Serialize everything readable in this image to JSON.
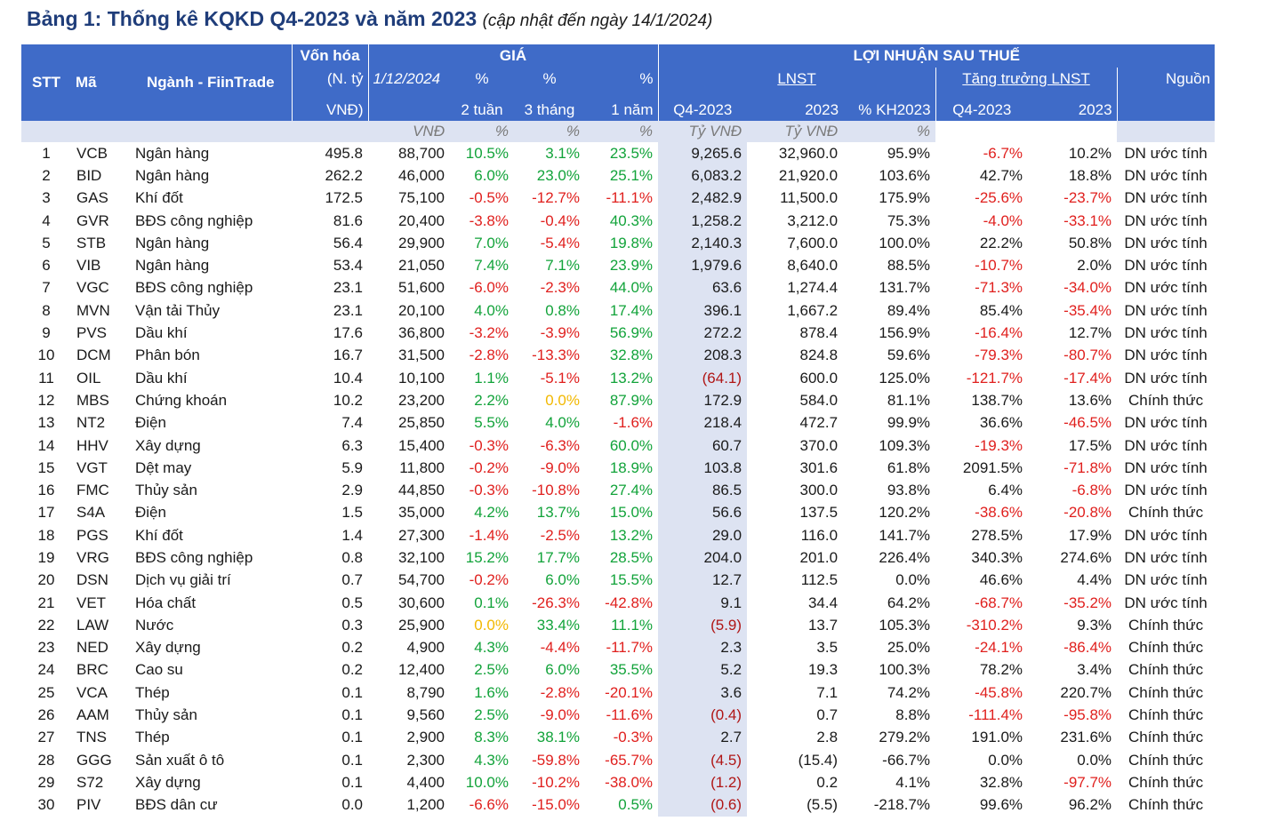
{
  "title": {
    "main": "Bảng 1: Thống kê KQKD Q4-2023 và năm 2023",
    "sub": "(cập nhật đến ngày 14/1/2024)"
  },
  "header": {
    "stt": "STT",
    "ma": "Mã",
    "nganh": "Ngành - FiinTrade",
    "von_hoa_1": "Vốn hóa",
    "von_hoa_2": "(N. tỷ",
    "von_hoa_3": "VNĐ)",
    "gia": "GIÁ",
    "gia_date": "1/12/2024",
    "pct_2tuan_a": "%",
    "pct_2tuan_b": "2 tuần",
    "pct_3thang_a": "%",
    "pct_3thang_b": "3 tháng",
    "pct_1nam_a": "%",
    "pct_1nam_b": "1 năm",
    "lnst_group": "LỢI NHUẬN SAU THUẾ",
    "lnst": "LNST",
    "q4": "Q4-2023",
    "y2023": "2023",
    "kh": "% KH2023",
    "tang_truong": "Tăng trưởng LNST",
    "tt_q4": "Q4-2023",
    "tt_2023": "2023",
    "nguon": "Nguồn"
  },
  "units": [
    "VNĐ",
    "%",
    "%",
    "%",
    "Tỷ VNĐ",
    "Tỷ VNĐ",
    "%"
  ],
  "rows": [
    [
      "1",
      "VCB",
      "Ngân hàng",
      "495.8",
      "88,700",
      "10.5%",
      "3.1%",
      "23.5%",
      "9,265.6",
      "32,960.0",
      "95.9%",
      "-6.7%",
      "10.2%",
      "DN ước tính"
    ],
    [
      "2",
      "BID",
      "Ngân hàng",
      "262.2",
      "46,000",
      "6.0%",
      "23.0%",
      "25.1%",
      "6,083.2",
      "21,920.0",
      "103.6%",
      "42.7%",
      "18.8%",
      "DN ước tính"
    ],
    [
      "3",
      "GAS",
      "Khí đốt",
      "172.5",
      "75,100",
      "-0.5%",
      "-12.7%",
      "-11.1%",
      "2,482.9",
      "11,500.0",
      "175.9%",
      "-25.6%",
      "-23.7%",
      "DN ước tính"
    ],
    [
      "4",
      "GVR",
      "BĐS công nghiệp",
      "81.6",
      "20,400",
      "-3.8%",
      "-0.4%",
      "40.3%",
      "1,258.2",
      "3,212.0",
      "75.3%",
      "-4.0%",
      "-33.1%",
      "DN ước tính"
    ],
    [
      "5",
      "STB",
      "Ngân hàng",
      "56.4",
      "29,900",
      "7.0%",
      "-5.4%",
      "19.8%",
      "2,140.3",
      "7,600.0",
      "100.0%",
      "22.2%",
      "50.8%",
      "DN ước tính"
    ],
    [
      "6",
      "VIB",
      "Ngân hàng",
      "53.4",
      "21,050",
      "7.4%",
      "7.1%",
      "23.9%",
      "1,979.6",
      "8,640.0",
      "88.5%",
      "-10.7%",
      "2.0%",
      "DN ước tính"
    ],
    [
      "7",
      "VGC",
      "BĐS công nghiệp",
      "23.1",
      "51,600",
      "-6.0%",
      "-2.3%",
      "44.0%",
      "63.6",
      "1,274.4",
      "131.7%",
      "-71.3%",
      "-34.0%",
      "DN ước tính"
    ],
    [
      "8",
      "MVN",
      "Vận tải Thủy",
      "23.1",
      "20,100",
      "4.0%",
      "0.8%",
      "17.4%",
      "396.1",
      "1,667.2",
      "89.4%",
      "85.4%",
      "-35.4%",
      "DN ước tính"
    ],
    [
      "9",
      "PVS",
      "Dầu khí",
      "17.6",
      "36,800",
      "-3.2%",
      "-3.9%",
      "56.9%",
      "272.2",
      "878.4",
      "156.9%",
      "-16.4%",
      "12.7%",
      "DN ước tính"
    ],
    [
      "10",
      "DCM",
      "Phân bón",
      "16.7",
      "31,500",
      "-2.8%",
      "-13.3%",
      "32.8%",
      "208.3",
      "824.8",
      "59.6%",
      "-79.3%",
      "-80.7%",
      "DN ước tính"
    ],
    [
      "11",
      "OIL",
      "Dầu khí",
      "10.4",
      "10,100",
      "1.1%",
      "-5.1%",
      "13.2%",
      "(64.1)",
      "600.0",
      "125.0%",
      "-121.7%",
      "-17.4%",
      "DN ước tính"
    ],
    [
      "12",
      "MBS",
      "Chứng khoán",
      "10.2",
      "23,200",
      "2.2%",
      "0.0%",
      "87.9%",
      "172.9",
      "584.0",
      "81.1%",
      "138.7%",
      "13.6%",
      "Chính thức"
    ],
    [
      "13",
      "NT2",
      "Điện",
      "7.4",
      "25,850",
      "5.5%",
      "4.0%",
      "-1.6%",
      "218.4",
      "472.7",
      "99.9%",
      "36.6%",
      "-46.5%",
      "DN ước tính"
    ],
    [
      "14",
      "HHV",
      "Xây dựng",
      "6.3",
      "15,400",
      "-0.3%",
      "-6.3%",
      "60.0%",
      "60.7",
      "370.0",
      "109.3%",
      "-19.3%",
      "17.5%",
      "DN ước tính"
    ],
    [
      "15",
      "VGT",
      "Dệt  may",
      "5.9",
      "11,800",
      "-0.2%",
      "-9.0%",
      "18.9%",
      "103.8",
      "301.6",
      "61.8%",
      "2091.5%",
      "-71.8%",
      "DN ước tính"
    ],
    [
      "16",
      "FMC",
      "Thủy sản",
      "2.9",
      "44,850",
      "-0.3%",
      "-10.8%",
      "27.4%",
      "86.5",
      "300.0",
      "93.8%",
      "6.4%",
      "-6.8%",
      "DN ước tính"
    ],
    [
      "17",
      "S4A",
      "Điện",
      "1.5",
      "35,000",
      "4.2%",
      "13.7%",
      "15.0%",
      "56.6",
      "137.5",
      "120.2%",
      "-38.6%",
      "-20.8%",
      "Chính thức"
    ],
    [
      "18",
      "PGS",
      "Khí đốt",
      "1.4",
      "27,300",
      "-1.4%",
      "-2.5%",
      "13.2%",
      "29.0",
      "116.0",
      "141.7%",
      "278.5%",
      "17.9%",
      "DN ước tính"
    ],
    [
      "19",
      "VRG",
      "BĐS công nghiệp",
      "0.8",
      "32,100",
      "15.2%",
      "17.7%",
      "28.5%",
      "204.0",
      "201.0",
      "226.4%",
      "340.3%",
      "274.6%",
      "DN ước tính"
    ],
    [
      "20",
      "DSN",
      "Dịch vụ giải trí",
      "0.7",
      "54,700",
      "-0.2%",
      "6.0%",
      "15.5%",
      "12.7",
      "112.5",
      "0.0%",
      "46.6%",
      "4.4%",
      "DN ước tính"
    ],
    [
      "21",
      "VET",
      "Hóa chất",
      "0.5",
      "30,600",
      "0.1%",
      "-26.3%",
      "-42.8%",
      "9.1",
      "34.4",
      "64.2%",
      "-68.7%",
      "-35.2%",
      "DN ước tính"
    ],
    [
      "22",
      "LAW",
      "Nước",
      "0.3",
      "25,900",
      "0.0%",
      "33.4%",
      "11.1%",
      "(5.9)",
      "13.7",
      "105.3%",
      "-310.2%",
      "9.3%",
      "Chính thức"
    ],
    [
      "23",
      "NED",
      "Xây dựng",
      "0.2",
      "4,900",
      "4.3%",
      "-4.4%",
      "-11.7%",
      "2.3",
      "3.5",
      "25.0%",
      "-24.1%",
      "-86.4%",
      "Chính thức"
    ],
    [
      "24",
      "BRC",
      "Cao su",
      "0.2",
      "12,400",
      "2.5%",
      "6.0%",
      "35.5%",
      "5.2",
      "19.3",
      "100.3%",
      "78.2%",
      "3.4%",
      "Chính thức"
    ],
    [
      "25",
      "VCA",
      "Thép",
      "0.1",
      "8,790",
      "1.6%",
      "-2.8%",
      "-20.1%",
      "3.6",
      "7.1",
      "74.2%",
      "-45.8%",
      "220.7%",
      "Chính thức"
    ],
    [
      "26",
      "AAM",
      "Thủy sản",
      "0.1",
      "9,560",
      "2.5%",
      "-9.0%",
      "-11.6%",
      "(0.4)",
      "0.7",
      "8.8%",
      "-111.4%",
      "-95.8%",
      "Chính thức"
    ],
    [
      "27",
      "TNS",
      "Thép",
      "0.1",
      "2,900",
      "8.3%",
      "38.1%",
      "-0.3%",
      "2.7",
      "2.8",
      "279.2%",
      "191.0%",
      "231.6%",
      "Chính thức"
    ],
    [
      "28",
      "GGG",
      "Sản xuất ô tô",
      "0.1",
      "2,300",
      "4.3%",
      "-59.8%",
      "-65.7%",
      "(4.5)",
      "(15.4)",
      "-66.7%",
      "0.0%",
      "0.0%",
      "Chính thức"
    ],
    [
      "29",
      "S72",
      "Xây dựng",
      "0.1",
      "4,400",
      "10.0%",
      "-10.2%",
      "-38.0%",
      "(1.2)",
      "0.2",
      "4.1%",
      "32.8%",
      "-97.7%",
      "Chính thức"
    ],
    [
      "30",
      "PIV",
      "BĐS dân cư",
      "0.0",
      "1,200",
      "-6.6%",
      "-15.0%",
      "0.5%",
      "(0.6)",
      "(5.5)",
      "-218.7%",
      "99.6%",
      "96.2%",
      "Chính thức"
    ]
  ],
  "colors": {
    "header_bg": "#3f6bc8",
    "highlight": "#dde3f2",
    "positive": "#12a33a",
    "negative": "#e0201e",
    "zero": "#f2b800"
  }
}
